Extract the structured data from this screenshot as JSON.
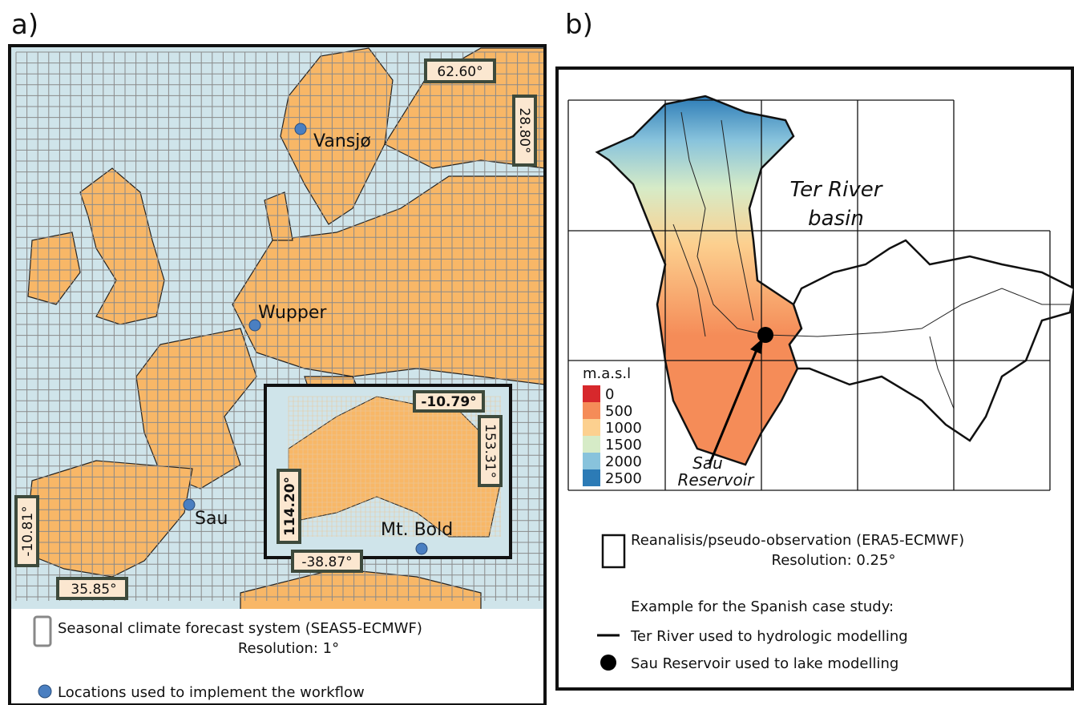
{
  "panel_a": {
    "label": "a)",
    "map_labels": {
      "top": "62.60°",
      "right": "28.80°",
      "left": "-10.81°",
      "bottom": "35.85°"
    },
    "locations": [
      "Vansjø",
      "Wupper",
      "Sau",
      "Mt. Bold"
    ],
    "inset_labels": {
      "top": "-10.79°",
      "right": "153.31°",
      "left": "114.20°",
      "bottom": "-38.87°"
    },
    "legend": {
      "grid_line1": "Seasonal climate forecast system (SEAS5-ECMWF)",
      "grid_line2": "Resolution: 1°",
      "locations": "Locations used to implement the workflow"
    }
  },
  "panel_b": {
    "label": "b)",
    "basin_label": [
      "Ter River",
      "basin"
    ],
    "reservoir_label": [
      "Sau",
      "Reservoir"
    ],
    "elevation_legend": {
      "title": "m.a.s.l",
      "levels": [
        0,
        500,
        1000,
        1500,
        2000,
        2500
      ],
      "colors": [
        "#d7282c",
        "#f58c58",
        "#fcd08f",
        "#d6ebc7",
        "#88c3dc",
        "#2c7bb6"
      ]
    },
    "legend": {
      "grid_line1": "Reanalisis/pseudo-observation (ERA5-ECMWF)",
      "grid_line2": "Resolution: 0.25°",
      "example": "Example for the Spanish case study:",
      "river": "Ter River used to hydrologic modelling",
      "reservoir": "Sau Reservoir used to lake modelling"
    }
  }
}
